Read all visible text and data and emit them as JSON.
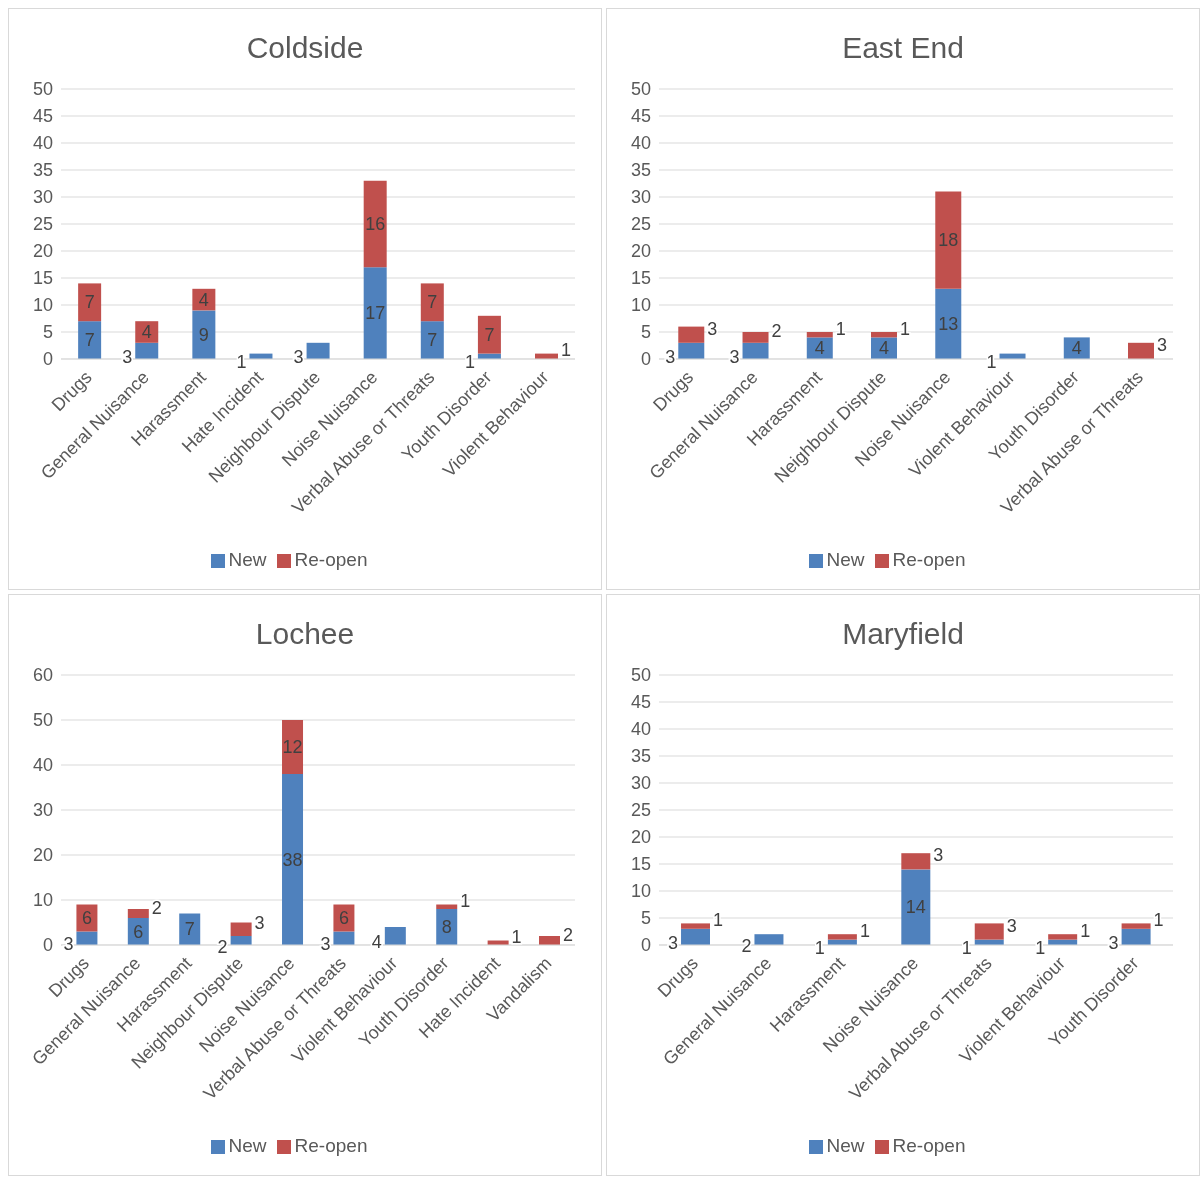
{
  "chart_data": [
    {
      "type": "bar",
      "title": "Coldside",
      "categories": [
        "Drugs",
        "General Nuisance",
        "Harassment",
        "Hate Incident",
        "Neighbour Dispute",
        "Noise Nuisance",
        "Verbal Abuse or Threats",
        "Youth Disorder",
        "Violent Behaviour"
      ],
      "series": [
        {
          "name": "New",
          "color": "#4f81bd",
          "values": [
            7,
            3,
            9,
            1,
            3,
            17,
            7,
            1,
            null
          ]
        },
        {
          "name": "Re-open",
          "color": "#c0504d",
          "values": [
            7,
            4,
            4,
            null,
            null,
            16,
            7,
            7,
            1
          ]
        }
      ],
      "stacked": true,
      "ylim": [
        0,
        50
      ],
      "yticks": [
        0,
        5,
        10,
        15,
        20,
        25,
        30,
        35,
        40,
        45,
        50
      ],
      "grid": "y",
      "legend": "bottom",
      "data_labels": true
    },
    {
      "type": "bar",
      "title": "East End",
      "categories": [
        "Drugs",
        "General Nuisance",
        "Harassment",
        "Neighbour Dispute",
        "Noise Nuisance",
        "Violent Behaviour",
        "Youth Disorder",
        "Verbal Abuse or Threats"
      ],
      "series": [
        {
          "name": "New",
          "color": "#4f81bd",
          "values": [
            3,
            3,
            4,
            4,
            13,
            1,
            4,
            null
          ]
        },
        {
          "name": "Re-open",
          "color": "#c0504d",
          "values": [
            3,
            2,
            1,
            1,
            18,
            null,
            null,
            3
          ]
        }
      ],
      "stacked": true,
      "ylim": [
        0,
        50
      ],
      "yticks": [
        0,
        5,
        10,
        15,
        20,
        25,
        30,
        35,
        40,
        45,
        50
      ],
      "grid": "y",
      "legend": "bottom",
      "data_labels": true
    },
    {
      "type": "bar",
      "title": "Lochee",
      "categories": [
        "Drugs",
        "General Nuisance",
        "Harassment",
        "Neighbour Dispute",
        "Noise Nuisance",
        "Verbal Abuse or Threats",
        "Violent Behaviour",
        "Youth Disorder",
        "Hate Incident",
        "Vandalism"
      ],
      "series": [
        {
          "name": "New",
          "color": "#4f81bd",
          "values": [
            3,
            6,
            7,
            2,
            38,
            3,
            4,
            8,
            null,
            null
          ]
        },
        {
          "name": "Re-open",
          "color": "#c0504d",
          "values": [
            6,
            2,
            null,
            3,
            12,
            6,
            null,
            1,
            1,
            2
          ]
        }
      ],
      "stacked": true,
      "ylim": [
        0,
        60
      ],
      "yticks": [
        0,
        10,
        20,
        30,
        40,
        50,
        60
      ],
      "grid": "y",
      "legend": "bottom",
      "data_labels": true
    },
    {
      "type": "bar",
      "title": "Maryfield",
      "categories": [
        "Drugs",
        "General Nuisance",
        "Harassment",
        "Noise Nuisance",
        "Verbal Abuse or Threats",
        "Violent Behaviour",
        "Youth Disorder"
      ],
      "series": [
        {
          "name": "New",
          "color": "#4f81bd",
          "values": [
            3,
            2,
            1,
            14,
            1,
            1,
            3
          ]
        },
        {
          "name": "Re-open",
          "color": "#c0504d",
          "values": [
            1,
            null,
            1,
            3,
            3,
            1,
            1
          ]
        }
      ],
      "stacked": true,
      "ylim": [
        0,
        50
      ],
      "yticks": [
        0,
        5,
        10,
        15,
        20,
        25,
        30,
        35,
        40,
        45,
        50
      ],
      "grid": "y",
      "legend": "bottom",
      "data_labels": true
    }
  ]
}
